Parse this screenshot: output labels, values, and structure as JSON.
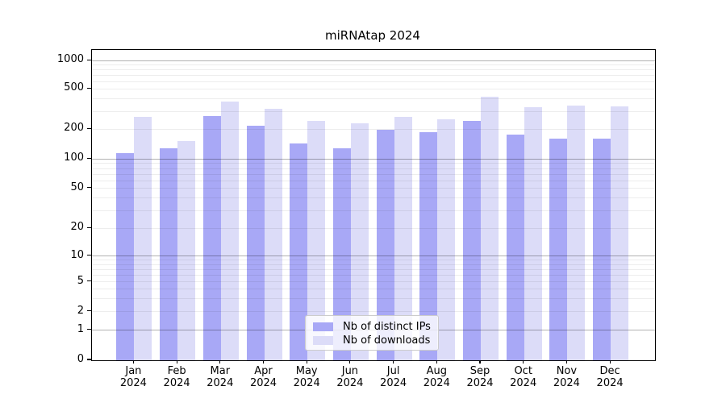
{
  "title": "miRNAtap 2024",
  "chart_data": {
    "type": "bar",
    "title": "miRNAtap 2024",
    "categories": [
      "Jan",
      "Feb",
      "Mar",
      "Apr",
      "May",
      "Jun",
      "Jul",
      "Aug",
      "Sep",
      "Oct",
      "Nov",
      "Dec"
    ],
    "category_year": "2024",
    "series": [
      {
        "name": "Nb of distinct IPs",
        "color": "#a8a8f6",
        "values": [
          115,
          128,
          268,
          218,
          144,
          128,
          197,
          185,
          242,
          175,
          161,
          160
        ]
      },
      {
        "name": "Nb of downloads",
        "color": "#dcdcf8",
        "values": [
          265,
          151,
          372,
          320,
          241,
          227,
          264,
          250,
          420,
          332,
          342,
          334
        ]
      }
    ],
    "ylabel": "",
    "xlabel": "",
    "yticks": [
      0,
      1,
      2,
      5,
      10,
      20,
      50,
      100,
      200,
      500,
      1000
    ],
    "ylim": [
      0,
      1150
    ],
    "yscale": "log-like (linear 0-1 segment)",
    "grid": "on, horizontal, minor log lines, drawn over bars",
    "legend_position": "lower center",
    "legend_labels": [
      "Nb of distinct IPs",
      "Nb of downloads"
    ],
    "colors": {
      "bar_dark": "#a8a8f6",
      "bar_light": "#dcdcf8",
      "grid_major": "#b3b3b3",
      "grid_minor": "#ededed",
      "axis": "#000000",
      "background": "#ffffff"
    }
  }
}
